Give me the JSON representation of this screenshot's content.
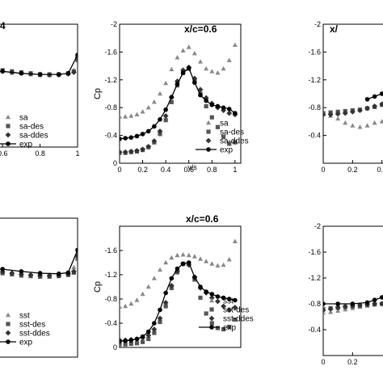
{
  "chart_data": [
    {
      "type": "scatter",
      "title": "",
      "xlabel": "",
      "ylabel": "",
      "xticks": [
        "0.6",
        "0.8",
        "1"
      ],
      "xlim": [
        0.5,
        1.0
      ],
      "ylim": [
        -2.4,
        0.0
      ],
      "yreversed": true,
      "legend_position": "bottom-left",
      "series": [
        {
          "name": "sa",
          "marker": "triangle",
          "color": "#888888",
          "x": [
            0.5,
            0.55,
            0.6,
            0.65,
            0.7,
            0.75,
            0.8,
            0.85,
            0.9,
            0.95,
            0.98,
            1.0
          ],
          "y": [
            -1.5,
            -1.55,
            -1.5,
            -1.45,
            -1.45,
            -1.42,
            -1.4,
            -1.4,
            -1.42,
            -1.45,
            -1.5,
            -1.8
          ]
        },
        {
          "name": "sa-des",
          "marker": "square",
          "color": "#555555",
          "x": [
            0.5,
            0.55,
            0.6,
            0.65,
            0.7,
            0.75,
            0.8,
            0.85,
            0.9,
            0.95,
            0.98,
            1.0
          ],
          "y": [
            -1.5,
            -1.52,
            -1.5,
            -1.48,
            -1.46,
            -1.44,
            -1.42,
            -1.42,
            -1.42,
            -1.44,
            -1.48,
            -1.7
          ]
        },
        {
          "name": "sa-ddes",
          "marker": "diamond",
          "color": "#333333",
          "x": [
            0.5,
            0.55,
            0.6,
            0.65,
            0.7,
            0.75,
            0.8,
            0.85,
            0.9,
            0.95,
            0.98,
            1.0
          ],
          "y": [
            -1.48,
            -1.5,
            -1.48,
            -1.46,
            -1.45,
            -1.43,
            -1.42,
            -1.41,
            -1.41,
            -1.43,
            -1.46,
            -1.75
          ]
        },
        {
          "name": "exp",
          "marker": "circle-line",
          "color": "#000000",
          "x": [
            0.5,
            0.6,
            0.7,
            0.8,
            0.9,
            0.95,
            1.0
          ],
          "y": [
            -1.5,
            -1.48,
            -1.44,
            -1.42,
            -1.42,
            -1.44,
            -1.8
          ]
        }
      ]
    },
    {
      "type": "scatter",
      "title": "x/c=0.6",
      "xlabel": "y/s",
      "ylabel": "Cp",
      "xticks": [
        "0",
        "0.2",
        "0.4",
        "0.6",
        "0.8",
        "1"
      ],
      "yticks": [
        "-2",
        "-1.6",
        "-1.2",
        "-0.8",
        "-0.4",
        "0"
      ],
      "xlim": [
        0,
        1.05
      ],
      "ylim": [
        -2.0,
        0.0
      ],
      "yreversed": true,
      "legend_position": "bottom-right",
      "series": [
        {
          "name": "sa",
          "marker": "triangle",
          "color": "#888888",
          "x": [
            0,
            0.05,
            0.1,
            0.15,
            0.2,
            0.25,
            0.3,
            0.35,
            0.4,
            0.45,
            0.5,
            0.55,
            0.6,
            0.65,
            0.7,
            0.75,
            0.8,
            0.85,
            0.9,
            0.95,
            1.0
          ],
          "y": [
            -0.67,
            -0.67,
            -0.68,
            -0.7,
            -0.74,
            -0.8,
            -0.88,
            -1.0,
            -1.15,
            -1.35,
            -1.52,
            -1.62,
            -1.67,
            -1.58,
            -1.46,
            -1.36,
            -1.32,
            -1.3,
            -1.36,
            -1.48,
            -1.7
          ]
        },
        {
          "name": "sa-des",
          "marker": "square",
          "color": "#555555",
          "x": [
            0,
            0.05,
            0.1,
            0.15,
            0.2,
            0.25,
            0.3,
            0.35,
            0.4,
            0.45,
            0.5,
            0.55,
            0.6,
            0.65,
            0.7,
            0.75,
            0.8,
            0.85,
            0.9,
            0.95,
            1.0
          ],
          "y": [
            -0.15,
            -0.15,
            -0.16,
            -0.17,
            -0.19,
            -0.23,
            -0.3,
            -0.42,
            -0.62,
            -0.88,
            -1.12,
            -1.3,
            -1.36,
            -1.18,
            -1.0,
            -0.82,
            -0.66,
            -0.52,
            -0.38,
            -0.28,
            -0.3
          ]
        },
        {
          "name": "sa-ddes",
          "marker": "diamond",
          "color": "#333333",
          "x": [
            0,
            0.05,
            0.1,
            0.15,
            0.2,
            0.25,
            0.3,
            0.35,
            0.4,
            0.45,
            0.5,
            0.55,
            0.6,
            0.65,
            0.7,
            0.75,
            0.8,
            0.85,
            0.9,
            0.95,
            1.0
          ],
          "y": [
            -0.16,
            -0.16,
            -0.17,
            -0.18,
            -0.2,
            -0.24,
            -0.32,
            -0.46,
            -0.68,
            -0.95,
            -1.18,
            -1.34,
            -1.38,
            -1.22,
            -1.06,
            -0.94,
            -0.86,
            -0.8,
            -0.76,
            -0.72,
            -0.7
          ]
        },
        {
          "name": "exp",
          "marker": "circle-line",
          "color": "#000000",
          "x": [
            0,
            0.05,
            0.1,
            0.15,
            0.2,
            0.25,
            0.3,
            0.35,
            0.4,
            0.45,
            0.5,
            0.55,
            0.6,
            0.65,
            0.7,
            0.75,
            0.8,
            0.85,
            0.9,
            0.95,
            1.0
          ],
          "y": [
            -0.35,
            -0.36,
            -0.37,
            -0.39,
            -0.42,
            -0.46,
            -0.53,
            -0.63,
            -0.77,
            -0.95,
            -1.14,
            -1.3,
            -1.37,
            -1.16,
            -0.98,
            -0.9,
            -0.84,
            -0.82,
            -0.8,
            -0.78,
            -0.72
          ]
        }
      ]
    },
    {
      "type": "scatter",
      "title": "x/",
      "xlabel": "",
      "ylabel": "",
      "xticks": [
        "0",
        "0.2",
        "0.4"
      ],
      "yticks": [
        "-2",
        "-1.6",
        "-1.2",
        "-0.8",
        "-0.4"
      ],
      "xlim": [
        0,
        0.55
      ],
      "ylim": [
        -2.0,
        0.0
      ],
      "yreversed": true,
      "series": [
        {
          "name": "sa",
          "marker": "triangle",
          "color": "#888888",
          "x": [
            0,
            0.05,
            0.1,
            0.15,
            0.2,
            0.25,
            0.3,
            0.35,
            0.4,
            0.45,
            0.5
          ],
          "y": [
            -0.7,
            -0.68,
            -0.64,
            -0.58,
            -0.54,
            -0.52,
            -0.54,
            -0.58,
            -0.6,
            -0.62,
            -0.64
          ]
        },
        {
          "name": "sa-des",
          "marker": "square",
          "color": "#555555",
          "x": [
            0,
            0.05,
            0.1,
            0.15,
            0.2,
            0.25,
            0.3,
            0.35,
            0.4,
            0.45,
            0.5
          ],
          "y": [
            -0.72,
            -0.73,
            -0.74,
            -0.75,
            -0.76,
            -0.77,
            -0.79,
            -0.81,
            -0.84,
            -0.87,
            -0.9
          ]
        },
        {
          "name": "sa-ddes",
          "marker": "diamond",
          "color": "#333333",
          "x": [
            0,
            0.05,
            0.1,
            0.15,
            0.2,
            0.25,
            0.3,
            0.35,
            0.4,
            0.45,
            0.5
          ],
          "y": [
            -0.7,
            -0.7,
            -0.71,
            -0.72,
            -0.74,
            -0.76,
            -0.79,
            -0.82,
            -0.85,
            -0.88,
            -0.92
          ]
        },
        {
          "name": "exp",
          "marker": "circle-line",
          "color": "#000000",
          "x": [
            0.3,
            0.35,
            0.4,
            0.45,
            0.5
          ],
          "y": [
            -0.92,
            -0.96,
            -1.0,
            -1.04,
            -1.06
          ]
        }
      ]
    },
    {
      "type": "scatter",
      "title": "",
      "xlabel": "",
      "ylabel": "",
      "xticks": [],
      "xlim": [
        0.5,
        1.0
      ],
      "ylim": [
        -2.4,
        0.0
      ],
      "yreversed": true,
      "legend_position": "bottom-left",
      "series": [
        {
          "name": "sst",
          "marker": "triangle",
          "color": "#888888",
          "x": [
            0.5,
            0.55,
            0.6,
            0.65,
            0.7,
            0.75,
            0.8,
            0.85,
            0.9,
            0.95,
            0.98,
            1.0
          ],
          "y": [
            -1.5,
            -1.52,
            -1.5,
            -1.47,
            -1.45,
            -1.43,
            -1.42,
            -1.42,
            -1.42,
            -1.46,
            -1.55,
            -1.85
          ]
        },
        {
          "name": "sst-des",
          "marker": "square",
          "color": "#555555",
          "x": [
            0.5,
            0.55,
            0.6,
            0.65,
            0.7,
            0.75,
            0.8,
            0.85,
            0.9,
            0.95,
            0.98,
            1.0
          ],
          "y": [
            -1.46,
            -1.47,
            -1.45,
            -1.43,
            -1.41,
            -1.4,
            -1.39,
            -1.39,
            -1.4,
            -1.42,
            -1.46,
            -1.7
          ]
        },
        {
          "name": "sst-ddes",
          "marker": "diamond",
          "color": "#333333",
          "x": [
            0.5,
            0.55,
            0.6,
            0.65,
            0.7,
            0.75,
            0.8,
            0.85,
            0.9,
            0.95,
            0.98,
            1.0
          ],
          "y": [
            -1.48,
            -1.49,
            -1.47,
            -1.45,
            -1.43,
            -1.42,
            -1.41,
            -1.41,
            -1.41,
            -1.43,
            -1.48,
            -1.75
          ]
        },
        {
          "name": "exp",
          "marker": "circle-line",
          "color": "#000000",
          "x": [
            0.5,
            0.6,
            0.7,
            0.8,
            0.9,
            0.95,
            1.0
          ],
          "y": [
            -1.52,
            -1.52,
            -1.48,
            -1.45,
            -1.44,
            -1.46,
            -1.85
          ]
        }
      ]
    },
    {
      "type": "scatter",
      "title": "x/c=0.6",
      "xlabel": "",
      "ylabel": "Cp",
      "xticks": [],
      "yticks": [
        "-1.6",
        "-1.2",
        "-0.8",
        "-0.4",
        "0"
      ],
      "xlim": [
        0,
        1.05
      ],
      "ylim": [
        -2.0,
        0.0
      ],
      "yreversed": true,
      "legend_position": "bottom-right",
      "series": [
        {
          "name": "sst",
          "marker": "triangle",
          "color": "#888888",
          "x": [
            0,
            0.05,
            0.1,
            0.15,
            0.2,
            0.25,
            0.3,
            0.35,
            0.4,
            0.45,
            0.5,
            0.55,
            0.6,
            0.65,
            0.7,
            0.75,
            0.8,
            0.85,
            0.9,
            0.95,
            1.0
          ],
          "y": [
            -0.67,
            -0.68,
            -0.72,
            -0.78,
            -0.88,
            -1.0,
            -1.14,
            -1.28,
            -1.4,
            -1.48,
            -1.52,
            -1.53,
            -1.52,
            -1.5,
            -1.46,
            -1.42,
            -1.38,
            -1.35,
            -1.36,
            -1.45,
            -1.75
          ]
        },
        {
          "name": "sst-des",
          "marker": "square",
          "color": "#555555",
          "x": [
            0,
            0.05,
            0.1,
            0.15,
            0.2,
            0.25,
            0.3,
            0.35,
            0.4,
            0.45,
            0.5,
            0.55,
            0.6,
            0.65,
            0.7,
            0.75,
            0.8,
            0.85,
            0.9,
            0.95,
            1.0
          ],
          "y": [
            -0.05,
            -0.05,
            -0.06,
            -0.07,
            -0.09,
            -0.14,
            -0.24,
            -0.42,
            -0.68,
            -0.98,
            -1.24,
            -1.38,
            -1.38,
            -1.12,
            -0.82,
            -0.56,
            -0.4,
            -0.32,
            -0.3,
            -0.34,
            -0.46
          ]
        },
        {
          "name": "sst-ddes",
          "marker": "diamond",
          "color": "#333333",
          "x": [
            0,
            0.05,
            0.1,
            0.15,
            0.2,
            0.25,
            0.3,
            0.35,
            0.4,
            0.45,
            0.5,
            0.55,
            0.6,
            0.65,
            0.7,
            0.75,
            0.8,
            0.85,
            0.9,
            0.95,
            1.0
          ],
          "y": [
            -0.12,
            -0.12,
            -0.13,
            -0.14,
            -0.16,
            -0.2,
            -0.3,
            -0.48,
            -0.74,
            -1.02,
            -1.26,
            -1.38,
            -1.36,
            -1.16,
            -0.98,
            -0.9,
            -0.82,
            -0.76,
            -0.68,
            -0.62,
            -0.66
          ]
        },
        {
          "name": "exp",
          "marker": "circle-line",
          "color": "#000000",
          "x": [
            0,
            0.05,
            0.1,
            0.15,
            0.2,
            0.25,
            0.3,
            0.35,
            0.4,
            0.45,
            0.5,
            0.55,
            0.6,
            0.65,
            0.7,
            0.75,
            0.8,
            0.85,
            0.9,
            0.95,
            1.0
          ],
          "y": [
            -0.1,
            -0.11,
            -0.12,
            -0.14,
            -0.18,
            -0.26,
            -0.4,
            -0.62,
            -0.9,
            -1.14,
            -1.3,
            -1.38,
            -1.4,
            -1.16,
            -1.0,
            -0.92,
            -0.88,
            -0.84,
            -0.82,
            -0.8,
            -0.78
          ]
        }
      ]
    },
    {
      "type": "scatter",
      "title": "",
      "xlabel": "",
      "ylabel": "",
      "xticks": [
        "0",
        "0.2"
      ],
      "yticks": [
        "-2",
        "-1.6",
        "-1.2",
        "-0.8",
        "-0.4"
      ],
      "xlim": [
        0,
        0.55
      ],
      "ylim": [
        -2.0,
        0.0
      ],
      "yreversed": true,
      "series": [
        {
          "name": "sst",
          "marker": "triangle",
          "color": "#888888",
          "x": [
            0,
            0.05,
            0.1,
            0.15,
            0.2,
            0.25,
            0.3,
            0.35,
            0.4,
            0.45,
            0.5
          ],
          "y": [
            -0.66,
            -0.67,
            -0.69,
            -0.71,
            -0.73,
            -0.75,
            -0.77,
            -0.79,
            -0.8,
            -0.81,
            -0.82
          ]
        },
        {
          "name": "sst-des",
          "marker": "square",
          "color": "#555555",
          "x": [
            0,
            0.05,
            0.1,
            0.15,
            0.2,
            0.25,
            0.3,
            0.35,
            0.4,
            0.45,
            0.5
          ],
          "y": [
            -0.72,
            -0.73,
            -0.74,
            -0.75,
            -0.76,
            -0.77,
            -0.78,
            -0.79,
            -0.8,
            -0.8,
            -0.8
          ]
        },
        {
          "name": "sst-ddes",
          "marker": "diamond",
          "color": "#333333",
          "x": [
            0,
            0.05,
            0.1,
            0.15,
            0.2,
            0.25,
            0.3,
            0.35,
            0.4,
            0.45,
            0.5
          ],
          "y": [
            -0.7,
            -0.72,
            -0.74,
            -0.76,
            -0.77,
            -0.78,
            -0.79,
            -0.8,
            -0.8,
            -0.81,
            -0.82
          ]
        },
        {
          "name": "exp",
          "marker": "circle-line",
          "color": "#000000",
          "x": [
            0.0,
            0.1,
            0.2,
            0.3,
            0.35,
            0.4,
            0.45,
            0.5
          ],
          "y": [
            -0.8,
            -0.8,
            -0.8,
            -0.82,
            -0.86,
            -0.9,
            -0.94,
            -0.98
          ]
        }
      ]
    }
  ]
}
